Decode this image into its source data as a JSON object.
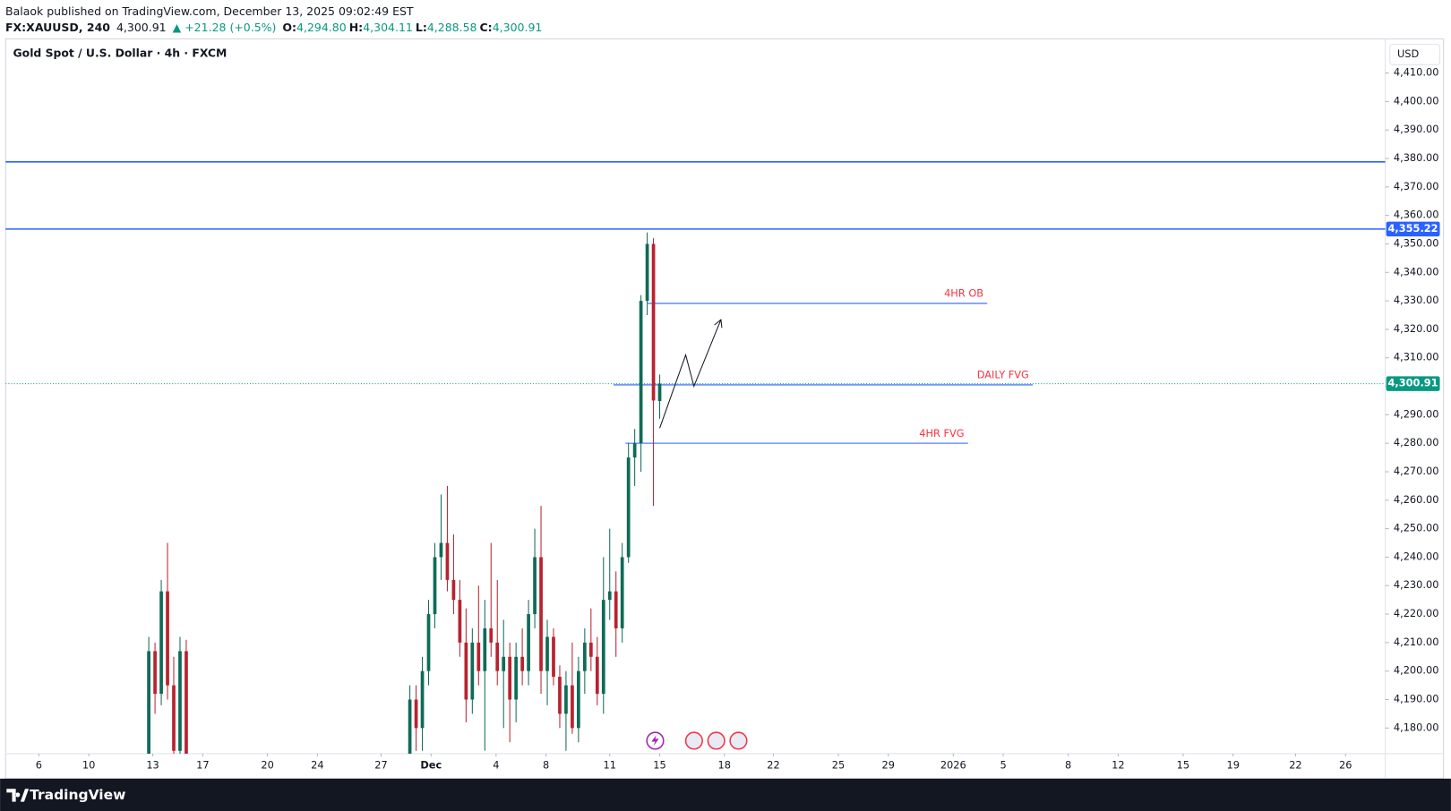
{
  "header": {
    "publisher": "Balaok published on TradingView.com, December 13, 2025 09:02:49 EST",
    "symbol": "FX:XAUUSD, 240",
    "last": "4,300.91",
    "change": "▲ +21.28 (+0.5%)",
    "ohlc": [
      {
        "key": "O:",
        "value": "4,294.80"
      },
      {
        "key": "H:",
        "value": "4,304.11"
      },
      {
        "key": "L:",
        "value": "4,288.58"
      },
      {
        "key": "C:",
        "value": "4,300.91"
      }
    ]
  },
  "footer": {
    "brand": "TradingView"
  },
  "chart_data": {
    "type": "candlestick",
    "title": "Gold Spot / U.S. Dollar · 4h · FXCM",
    "currency": "USD",
    "colors": {
      "up": "#0f6b57",
      "down": "#b8232f",
      "annotation": "#f23645",
      "level": "#2962ff",
      "last": "#089981",
      "projection": "#131722"
    },
    "ylim": [
      4171,
      4422
    ],
    "yticks": [
      {
        "value": 4180,
        "label": "4,180.00"
      },
      {
        "value": 4190,
        "label": "4,190.00"
      },
      {
        "value": 4200,
        "label": "4,200.00"
      },
      {
        "value": 4210,
        "label": "4,210.00"
      },
      {
        "value": 4220,
        "label": "4,220.00"
      },
      {
        "value": 4230,
        "label": "4,230.00"
      },
      {
        "value": 4240,
        "label": "4,240.00"
      },
      {
        "value": 4250,
        "label": "4,250.00"
      },
      {
        "value": 4260,
        "label": "4,260.00"
      },
      {
        "value": 4270,
        "label": "4,270.00"
      },
      {
        "value": 4280,
        "label": "4,280.00"
      },
      {
        "value": 4290,
        "label": "4,290.00"
      },
      {
        "value": 4300,
        "label": "4,300.00"
      },
      {
        "value": 4310,
        "label": "4,310.00"
      },
      {
        "value": 4320,
        "label": "4,320.00"
      },
      {
        "value": 4330,
        "label": "4,330.00"
      },
      {
        "value": 4340,
        "label": "4,340.00"
      },
      {
        "value": 4350,
        "label": "4,350.00"
      },
      {
        "value": 4360,
        "label": "4,360.00"
      },
      {
        "value": 4370,
        "label": "4,370.00"
      },
      {
        "value": 4380,
        "label": "4,380.00"
      },
      {
        "value": 4390,
        "label": "4,390.00"
      },
      {
        "value": 4400,
        "label": "4,400.00"
      },
      {
        "value": 4410,
        "label": "4,410.00"
      }
    ],
    "xlim": [
      -1.33,
      53.89
    ],
    "xticks": [
      {
        "value": 0,
        "label": "6"
      },
      {
        "value": 2,
        "label": "10"
      },
      {
        "value": 4.56,
        "label": "13"
      },
      {
        "value": 6.56,
        "label": "17"
      },
      {
        "value": 9.15,
        "label": "20"
      },
      {
        "value": 11.15,
        "label": "24"
      },
      {
        "value": 13.7,
        "label": "27"
      },
      {
        "value": 15.7,
        "label": "Dec"
      },
      {
        "value": 18.3,
        "label": "4"
      },
      {
        "value": 20.3,
        "label": "8"
      },
      {
        "value": 22.85,
        "label": "11"
      },
      {
        "value": 24.85,
        "label": "15"
      },
      {
        "value": 27.44,
        "label": "18"
      },
      {
        "value": 29.4,
        "label": "22"
      },
      {
        "value": 32,
        "label": "25"
      },
      {
        "value": 34,
        "label": "29"
      },
      {
        "value": 36.6,
        "label": "2026"
      },
      {
        "value": 38.6,
        "label": "5"
      },
      {
        "value": 41.2,
        "label": "8"
      },
      {
        "value": 43.2,
        "label": "12"
      },
      {
        "value": 45.8,
        "label": "15"
      },
      {
        "value": 47.8,
        "label": "19"
      },
      {
        "value": 50.3,
        "label": "22"
      },
      {
        "value": 52.3,
        "label": "26"
      }
    ],
    "candles": [
      {
        "x": 4.4,
        "open": 4170,
        "high": 4212,
        "low": 4165,
        "close": 4207
      },
      {
        "x": 4.65,
        "open": 4207,
        "high": 4210,
        "low": 4185,
        "close": 4192
      },
      {
        "x": 4.9,
        "open": 4192,
        "high": 4232,
        "low": 4188,
        "close": 4228
      },
      {
        "x": 5.15,
        "open": 4228,
        "high": 4245,
        "low": 4190,
        "close": 4195
      },
      {
        "x": 5.4,
        "open": 4195,
        "high": 4205,
        "low": 4165,
        "close": 4172
      },
      {
        "x": 5.65,
        "open": 4172,
        "high": 4212,
        "low": 4168,
        "close": 4207
      },
      {
        "x": 5.9,
        "open": 4207,
        "high": 4211,
        "low": 4165,
        "close": 4170
      },
      {
        "x": 14.85,
        "open": 4170,
        "high": 4195,
        "low": 4165,
        "close": 4190
      },
      {
        "x": 15.1,
        "open": 4190,
        "high": 4195,
        "low": 4172,
        "close": 4180
      },
      {
        "x": 15.35,
        "open": 4180,
        "high": 4205,
        "low": 4172,
        "close": 4200
      },
      {
        "x": 15.6,
        "open": 4200,
        "high": 4225,
        "low": 4195,
        "close": 4220
      },
      {
        "x": 15.85,
        "open": 4220,
        "high": 4245,
        "low": 4215,
        "close": 4240
      },
      {
        "x": 16.1,
        "open": 4240,
        "high": 4262,
        "low": 4232,
        "close": 4245
      },
      {
        "x": 16.35,
        "open": 4245,
        "high": 4265,
        "low": 4228,
        "close": 4232
      },
      {
        "x": 16.6,
        "open": 4232,
        "high": 4248,
        "low": 4220,
        "close": 4225
      },
      {
        "x": 16.85,
        "open": 4225,
        "high": 4232,
        "low": 4205,
        "close": 4210
      },
      {
        "x": 17.1,
        "open": 4210,
        "high": 4222,
        "low": 4182,
        "close": 4190
      },
      {
        "x": 17.35,
        "open": 4190,
        "high": 4215,
        "low": 4185,
        "close": 4210
      },
      {
        "x": 17.6,
        "open": 4210,
        "high": 4230,
        "low": 4195,
        "close": 4200
      },
      {
        "x": 17.85,
        "open": 4200,
        "high": 4225,
        "low": 4172,
        "close": 4215
      },
      {
        "x": 18.1,
        "open": 4215,
        "high": 4245,
        "low": 4205,
        "close": 4210
      },
      {
        "x": 18.35,
        "open": 4210,
        "high": 4232,
        "low": 4195,
        "close": 4200
      },
      {
        "x": 18.6,
        "open": 4200,
        "high": 4218,
        "low": 4180,
        "close": 4205
      },
      {
        "x": 18.85,
        "open": 4205,
        "high": 4210,
        "low": 4175,
        "close": 4190
      },
      {
        "x": 19.1,
        "open": 4190,
        "high": 4210,
        "low": 4182,
        "close": 4205
      },
      {
        "x": 19.35,
        "open": 4205,
        "high": 4215,
        "low": 4195,
        "close": 4200
      },
      {
        "x": 19.6,
        "open": 4200,
        "high": 4225,
        "low": 4195,
        "close": 4220
      },
      {
        "x": 19.85,
        "open": 4220,
        "high": 4250,
        "low": 4215,
        "close": 4240
      },
      {
        "x": 20.1,
        "open": 4240,
        "high": 4258,
        "low": 4192,
        "close": 4200
      },
      {
        "x": 20.35,
        "open": 4200,
        "high": 4218,
        "low": 4188,
        "close": 4212
      },
      {
        "x": 20.6,
        "open": 4212,
        "high": 4215,
        "low": 4195,
        "close": 4198
      },
      {
        "x": 20.85,
        "open": 4198,
        "high": 4202,
        "low": 4180,
        "close": 4185
      },
      {
        "x": 21.1,
        "open": 4185,
        "high": 4200,
        "low": 4172,
        "close": 4195
      },
      {
        "x": 21.35,
        "open": 4195,
        "high": 4210,
        "low": 4178,
        "close": 4180
      },
      {
        "x": 21.6,
        "open": 4180,
        "high": 4205,
        "low": 4175,
        "close": 4200
      },
      {
        "x": 21.85,
        "open": 4200,
        "high": 4215,
        "low": 4192,
        "close": 4210
      },
      {
        "x": 22.1,
        "open": 4210,
        "high": 4222,
        "low": 4200,
        "close": 4205
      },
      {
        "x": 22.35,
        "open": 4205,
        "high": 4212,
        "low": 4188,
        "close": 4192
      },
      {
        "x": 22.6,
        "open": 4192,
        "high": 4240,
        "low": 4185,
        "close": 4225
      },
      {
        "x": 22.85,
        "open": 4225,
        "high": 4250,
        "low": 4218,
        "close": 4228
      },
      {
        "x": 23.1,
        "open": 4228,
        "high": 4235,
        "low": 4205,
        "close": 4215
      },
      {
        "x": 23.35,
        "open": 4215,
        "high": 4245,
        "low": 4210,
        "close": 4240
      },
      {
        "x": 23.6,
        "open": 4240,
        "high": 4280,
        "low": 4238,
        "close": 4275
      },
      {
        "x": 23.85,
        "open": 4275,
        "high": 4285,
        "low": 4265,
        "close": 4280
      },
      {
        "x": 24.1,
        "open": 4280,
        "high": 4332,
        "low": 4270,
        "close": 4330
      },
      {
        "x": 24.35,
        "open": 4330,
        "high": 4354,
        "low": 4325,
        "close": 4350
      },
      {
        "x": 24.6,
        "open": 4350,
        "high": 4352,
        "low": 4258,
        "close": 4295
      },
      {
        "x": 24.85,
        "open": 4294.8,
        "high": 4304.11,
        "low": 4288.58,
        "close": 4300.91
      }
    ],
    "levels": [
      {
        "value": 4378.8
      },
      {
        "value": 4355.22,
        "label": "4,355.22"
      }
    ],
    "last_price": {
      "value": 4300.91,
      "label": "4,300.91"
    },
    "zones": [
      {
        "label": "4HR OB",
        "value": 4329.1,
        "x": [
          24.37,
          37.96
        ]
      },
      {
        "label": "DAILY FVG",
        "value": 4300.5,
        "x": [
          23.0,
          39.78
        ]
      },
      {
        "label": "4HR FVG",
        "value": 4280,
        "x": [
          23.48,
          37.19
        ]
      }
    ],
    "projection": {
      "x": [
        24.85,
        25.89,
        26.22,
        27.3
      ],
      "y": [
        4285.3,
        4311,
        4300,
        4323.4
      ]
    }
  }
}
